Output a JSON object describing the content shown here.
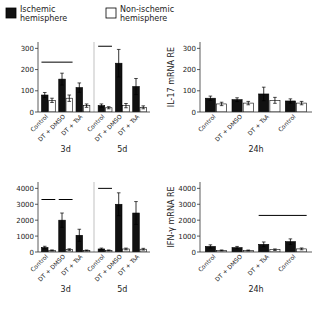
{
  "chart_data": [
    {
      "type": "bar",
      "grid": false,
      "legend": "upper left",
      "categories": [
        "Control",
        "DT + DMSO",
        "DT + TsA",
        "Control",
        "DT + DMSO",
        "DT + TsA"
      ],
      "category_groups": [
        "3d",
        "3d",
        "3d",
        "5d",
        "5d",
        "5d"
      ],
      "series": [
        {
          "name": "Ischemic\nhemisphere",
          "color": "#111111",
          "values": [
            80,
            155,
            115,
            30,
            230,
            120
          ],
          "errors": [
            12,
            28,
            22,
            8,
            65,
            38
          ]
        },
        {
          "name": "Non-ischemic\nhemisphere",
          "color": "#ffffff",
          "values": [
            55,
            65,
            30,
            20,
            30,
            22
          ],
          "errors": [
            10,
            15,
            8,
            5,
            10,
            7
          ]
        }
      ],
      "significance_lines": [
        {
          "from": 0,
          "to": 1,
          "y": 235
        },
        {
          "from": 3,
          "to": 3,
          "y": 310
        }
      ],
      "ylim": [
        0,
        330
      ],
      "yticks": [
        0,
        100,
        200,
        300
      ]
    },
    {
      "type": "bar",
      "grid": false,
      "ylabel": "IL-17 mRNA RE",
      "categories": [
        "Control",
        "DT + DMSO",
        "DT + TsA",
        "Control"
      ],
      "category_groups": [
        "24h",
        "24h",
        "24h",
        "24h"
      ],
      "series": [
        {
          "name": "Ischemic\nhemisphere",
          "color": "#111111",
          "values": [
            65,
            58,
            85,
            52
          ],
          "errors": [
            10,
            9,
            32,
            10
          ]
        },
        {
          "name": "Non-ischemic\nhemisphere",
          "color": "#ffffff",
          "values": [
            38,
            42,
            55,
            42
          ],
          "errors": [
            8,
            8,
            14,
            8
          ]
        }
      ],
      "significance_lines": [],
      "ylim": [
        0,
        330
      ],
      "yticks": [
        0,
        100,
        200,
        300
      ]
    },
    {
      "type": "bar",
      "grid": false,
      "categories": [
        "Control",
        "DT + DMSO",
        "DT + TsA",
        "Control",
        "DT + DMSO",
        "DT + TsA"
      ],
      "category_groups": [
        "3d",
        "3d",
        "3d",
        "5d",
        "5d",
        "5d"
      ],
      "series": [
        {
          "name": "Ischemic\nhemisphere",
          "color": "#111111",
          "values": [
            280,
            2000,
            1050,
            190,
            3000,
            2450
          ],
          "errors": [
            80,
            450,
            380,
            55,
            720,
            720
          ]
        },
        {
          "name": "Non-ischemic\nhemisphere",
          "color": "#ffffff",
          "values": [
            100,
            150,
            95,
            100,
            190,
            175
          ],
          "errors": [
            30,
            50,
            30,
            28,
            55,
            55
          ]
        }
      ],
      "significance_lines": [
        {
          "from": 0,
          "to": 0,
          "y": 3300
        },
        {
          "from": 1,
          "to": 1,
          "y": 3300
        },
        {
          "from": 3,
          "to": 3,
          "y": 4000
        }
      ],
      "ylim": [
        0,
        4400
      ],
      "yticks": [
        0,
        1000,
        2000,
        3000,
        4000
      ]
    },
    {
      "type": "bar",
      "grid": false,
      "ylabel": "IFN-γ mRNA RE",
      "categories": [
        "Control",
        "DT + DMSO",
        "DT + TsA",
        "Control"
      ],
      "category_groups": [
        "24h",
        "24h",
        "24h",
        "24h"
      ],
      "series": [
        {
          "name": "Ischemic\nhemisphere",
          "color": "#111111",
          "values": [
            350,
            275,
            480,
            650
          ],
          "errors": [
            100,
            75,
            150,
            175
          ]
        },
        {
          "name": "Non-ischemic\nhemisphere",
          "color": "#ffffff",
          "values": [
            100,
            95,
            145,
            195
          ],
          "errors": [
            28,
            28,
            48,
            58
          ]
        }
      ],
      "significance_lines": [
        {
          "from": 2,
          "to": 3,
          "y": 2300
        }
      ],
      "ylim": [
        0,
        4400
      ],
      "yticks": [
        0,
        1000,
        2000,
        3000,
        4000
      ]
    }
  ]
}
